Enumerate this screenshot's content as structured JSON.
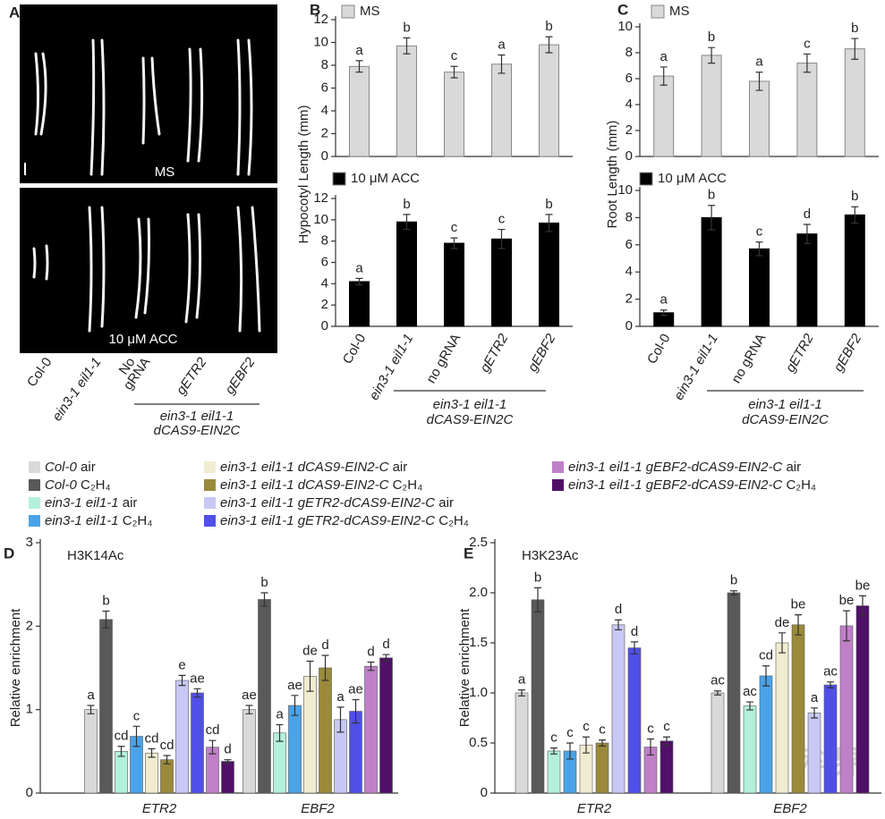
{
  "panels": [
    "A",
    "B",
    "C",
    "D",
    "E"
  ],
  "panel_a": {
    "top_label": "MS",
    "bottom_label": "10 μM ACC",
    "labels": [
      "Col-0",
      "ein3-1 eil1-1",
      "No",
      "gRNA",
      "gETR2",
      "gEBF2"
    ],
    "group": [
      "ein3-1 eil1-1",
      "dCAS9-EIN2C"
    ]
  },
  "watermark": "科界",
  "chart_data": [
    {
      "type": "bar",
      "legend": "MS",
      "color": "#d9d9d9",
      "ylabel": "Hypocotyl Length (mm)",
      "ylim": [
        0,
        12
      ],
      "yticks": [
        0,
        2,
        4,
        6,
        8,
        10,
        12
      ],
      "values": [
        7.9,
        9.7,
        7.4,
        8.1,
        9.8
      ],
      "errors": [
        0.5,
        0.7,
        0.5,
        0.8,
        0.7
      ],
      "letters": [
        "a",
        "b",
        "c",
        "a",
        "b"
      ]
    },
    {
      "type": "bar",
      "legend": "10 μM ACC",
      "color": "#000000",
      "ylim": [
        0,
        12
      ],
      "yticks": [
        0,
        2,
        4,
        6,
        8,
        10,
        12
      ],
      "categories": [
        "Col-0",
        "ein3-1 eil1-1",
        "no gRNA",
        "gETR2",
        "gEBF2"
      ],
      "group_label": [
        "ein3-1 eil1-1",
        "dCAS9-EIN2C"
      ],
      "values": [
        4.2,
        9.8,
        7.8,
        8.2,
        9.7
      ],
      "errors": [
        0.3,
        0.7,
        0.5,
        0.9,
        0.8
      ],
      "letters": [
        "a",
        "b",
        "c",
        "c",
        "b"
      ]
    },
    {
      "type": "bar",
      "legend": "MS",
      "color": "#d9d9d9",
      "ylabel": "Root Length (mm)",
      "ylim": [
        0,
        10
      ],
      "yticks": [
        0,
        2,
        4,
        6,
        8,
        10
      ],
      "values": [
        6.2,
        7.8,
        5.8,
        7.2,
        8.3
      ],
      "errors": [
        0.7,
        0.6,
        0.7,
        0.7,
        0.8
      ],
      "letters": [
        "a",
        "b",
        "a",
        "c",
        "b"
      ]
    },
    {
      "type": "bar",
      "legend": "10 μM ACC",
      "color": "#000000",
      "ylim": [
        0,
        10
      ],
      "yticks": [
        0,
        2,
        4,
        6,
        8,
        10
      ],
      "categories": [
        "Col-0",
        "ein3-1 eil1-1",
        "no gRNA",
        "gETR2",
        "gEBF2"
      ],
      "group_label": [
        "ein3-1 eil1-1",
        "dCAS9-EIN2C"
      ],
      "values": [
        1.0,
        8.0,
        5.7,
        6.8,
        8.2
      ],
      "errors": [
        0.2,
        0.9,
        0.5,
        0.7,
        0.6
      ],
      "letters": [
        "a",
        "b",
        "c",
        "d",
        "b"
      ]
    },
    {
      "type": "grouped_bar",
      "title": "H3K14Ac",
      "ylabel": "Relative enrichment",
      "ylim": [
        0,
        3
      ],
      "yticks": [
        0,
        1,
        2,
        3
      ],
      "categories": [
        "ETR2",
        "EBF2"
      ],
      "series": [
        {
          "name": "Col-0 air",
          "color": "#d9d9d9",
          "values": [
            1.0,
            1.0
          ],
          "errors": [
            0.05,
            0.05
          ],
          "letters": [
            "a",
            "ae"
          ]
        },
        {
          "name": "Col-0 C₂H₄",
          "color": "#595959",
          "values": [
            2.08,
            2.32
          ],
          "errors": [
            0.1,
            0.08
          ],
          "letters": [
            "b",
            "b"
          ]
        },
        {
          "name": "ein3-1 eil1-1 air",
          "color": "#b3f0dc",
          "values": [
            0.5,
            0.72
          ],
          "errors": [
            0.06,
            0.1
          ],
          "letters": [
            "cd",
            "a"
          ]
        },
        {
          "name": "ein3-1 eil1-1 C₂H₄",
          "color": "#4aa3e8",
          "values": [
            0.68,
            1.05
          ],
          "errors": [
            0.12,
            0.12
          ],
          "letters": [
            "c",
            "ae"
          ]
        },
        {
          "name": "ein3-1 eil1-1 dCAS9-EIN2-C air",
          "color": "#f0ecd0",
          "values": [
            0.48,
            1.4
          ],
          "errors": [
            0.05,
            0.18
          ],
          "letters": [
            "cd",
            "de"
          ]
        },
        {
          "name": "ein3-1 eil1-1 dCAS9-EIN2-C C₂H₄",
          "color": "#9a8a3a",
          "values": [
            0.4,
            1.5
          ],
          "errors": [
            0.05,
            0.15
          ],
          "letters": [
            "cd",
            "d"
          ]
        },
        {
          "name": "ein3-1 eil1-1 gETR2-dCAS9-EIN2-C air",
          "color": "#c8c8f5",
          "values": [
            1.35,
            0.88
          ],
          "errors": [
            0.06,
            0.15
          ],
          "letters": [
            "e",
            "a"
          ]
        },
        {
          "name": "ein3-1 eil1-1 gETR2-dCAS9-EIN2-C C₂H₄",
          "color": "#5050e8",
          "values": [
            1.2,
            0.98
          ],
          "errors": [
            0.05,
            0.14
          ],
          "letters": [
            "ae",
            "ae"
          ]
        },
        {
          "name": "ein3-1 eil1-1 gEBF2-dCAS9-EIN2-C air",
          "color": "#c080c8",
          "values": [
            0.55,
            1.52
          ],
          "errors": [
            0.08,
            0.05
          ],
          "letters": [
            "cd",
            "d"
          ]
        },
        {
          "name": "ein3-1 eil1-1 gEBF2-dCAS9-EIN2-C C₂H₄",
          "color": "#50106a",
          "values": [
            0.38,
            1.62
          ],
          "errors": [
            0.02,
            0.04
          ],
          "letters": [
            "d",
            "d"
          ]
        }
      ]
    },
    {
      "type": "grouped_bar",
      "title": "H3K23Ac",
      "ylabel": "Relative enrichment",
      "ylim": [
        0,
        2.5
      ],
      "yticks": [
        0,
        0.5,
        {
          "value": 1,
          "label": "1.0"
        },
        {
          "value": 1.5,
          "label": "1.5"
        },
        {
          "value": 2,
          "label": "2.0"
        },
        2.5
      ],
      "categories": [
        "ETR2",
        "EBF2"
      ],
      "series": [
        {
          "color": "#d9d9d9",
          "values": [
            1.0,
            1.0
          ],
          "errors": [
            0.03,
            0.02
          ],
          "letters": [
            "a",
            "ac"
          ]
        },
        {
          "color": "#595959",
          "values": [
            1.93,
            2.0
          ],
          "errors": [
            0.12,
            0.02
          ],
          "letters": [
            "b",
            "b"
          ]
        },
        {
          "color": "#b3f0dc",
          "values": [
            0.42,
            0.87
          ],
          "errors": [
            0.03,
            0.04
          ],
          "letters": [
            "c",
            "ac"
          ]
        },
        {
          "color": "#4aa3e8",
          "values": [
            0.42,
            1.17
          ],
          "errors": [
            0.08,
            0.1
          ],
          "letters": [
            "c",
            "cd"
          ]
        },
        {
          "color": "#f0ecd0",
          "values": [
            0.48,
            1.5
          ],
          "errors": [
            0.08,
            0.1
          ],
          "letters": [
            "c",
            "de"
          ]
        },
        {
          "color": "#9a8a3a",
          "values": [
            0.5,
            1.68
          ],
          "errors": [
            0.03,
            0.1
          ],
          "letters": [
            "c",
            "be"
          ]
        },
        {
          "color": "#c8c8f5",
          "values": [
            1.68,
            0.8
          ],
          "errors": [
            0.05,
            0.05
          ],
          "letters": [
            "d",
            "a"
          ]
        },
        {
          "color": "#5050e8",
          "values": [
            1.45,
            1.08
          ],
          "errors": [
            0.06,
            0.03
          ],
          "letters": [
            "d",
            "ac"
          ]
        },
        {
          "color": "#c080c8",
          "values": [
            0.46,
            1.67
          ],
          "errors": [
            0.08,
            0.15
          ],
          "letters": [
            "c",
            "be"
          ]
        },
        {
          "color": "#50106a",
          "values": [
            0.52,
            1.87
          ],
          "errors": [
            0.04,
            0.1
          ],
          "letters": [
            "c",
            "be"
          ]
        }
      ]
    }
  ]
}
